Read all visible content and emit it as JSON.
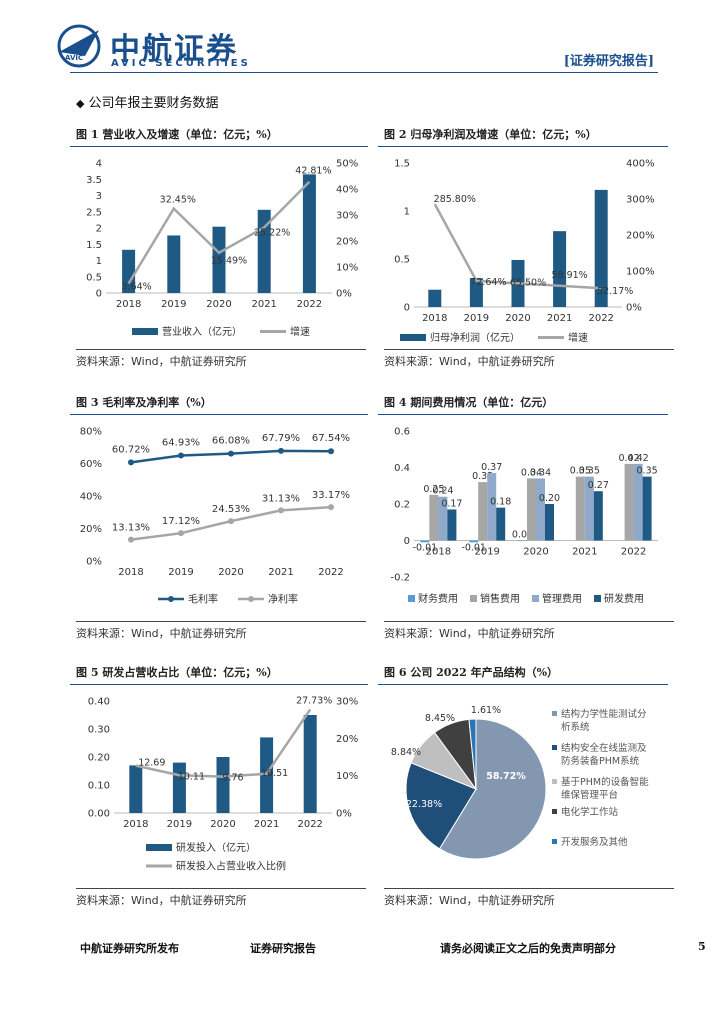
{
  "header": {
    "logo_cn": "中航证券",
    "logo_en": "AVIC SECURITIES",
    "logo_mark_text": "AVIC",
    "report_tag": "[证券研究报告]"
  },
  "section_title": "公司年报主要财务数据",
  "figures": [
    {
      "title": "图 1 营业收入及增速（单位：亿元；%）",
      "source": "资料来源：Wind，中航证券研究所"
    },
    {
      "title": "图 2 归母净利润及增速（单位：亿元；%）",
      "source": "资料来源：Wind，中航证券研究所"
    },
    {
      "title": "图 3 毛利率及净利率（%）",
      "source": "资料来源：Wind，中航证券研究所"
    },
    {
      "title": "图 4 期间费用情况（单位：亿元）",
      "source": "资料来源：Wind，中航证券研究所"
    },
    {
      "title": "图 5 研发占营收占比（单位：亿元；%）",
      "source": "资料来源：Wind，中航证券研究所"
    },
    {
      "title": "图 6 公司 2022 年产品结构（%）",
      "source": "资料来源：Wind，中航证券研究所"
    }
  ],
  "chart_data": [
    {
      "type": "bar",
      "categories": [
        "2018",
        "2019",
        "2020",
        "2021",
        "2022"
      ],
      "series": [
        {
          "name": "营业收入（亿元）",
          "values": [
            1.33,
            1.77,
            2.04,
            2.56,
            3.65
          ],
          "axis": "left",
          "color": "#1f5a85"
        },
        {
          "name": "增速",
          "type": "line",
          "values": [
            3.64,
            32.45,
            15.49,
            25.22,
            42.81
          ],
          "axis": "right",
          "color": "#a6a6a6",
          "labels": [
            "3.64%",
            "32.45%",
            "15.49%",
            "25.22%",
            "42.81%"
          ]
        }
      ],
      "ylim": [
        0,
        4
      ],
      "yticks": [
        "0",
        "0.5",
        "1",
        "1.5",
        "2",
        "2.5",
        "3",
        "3.5",
        "4"
      ],
      "y2lim": [
        0,
        50
      ],
      "y2ticks": [
        "0%",
        "10%",
        "20%",
        "30%",
        "40%",
        "50%"
      ],
      "legend": "bottom"
    },
    {
      "type": "bar",
      "categories": [
        "2018",
        "2019",
        "2020",
        "2021",
        "2022"
      ],
      "series": [
        {
          "name": "归母净利润（亿元）",
          "values": [
            0.18,
            0.3,
            0.49,
            0.79,
            1.22
          ],
          "axis": "left",
          "color": "#1f5a85"
        },
        {
          "name": "增速",
          "type": "line",
          "values": [
            285.8,
            72.64,
            65.5,
            58.91,
            52.17
          ],
          "axis": "right",
          "color": "#a6a6a6",
          "labels": [
            "285.80%",
            "72.64%",
            "65.50%",
            "58.91%",
            "52.17%"
          ]
        }
      ],
      "ylim": [
        0,
        1.5
      ],
      "yticks": [
        "0",
        "0.5",
        "1",
        "1.5"
      ],
      "y2lim": [
        0,
        400
      ],
      "y2ticks": [
        "0%",
        "100%",
        "200%",
        "300%",
        "400%"
      ],
      "legend": "bottom"
    },
    {
      "type": "line",
      "categories": [
        "2018",
        "2019",
        "2020",
        "2021",
        "2022"
      ],
      "series": [
        {
          "name": "毛利率",
          "values": [
            60.72,
            64.93,
            66.08,
            67.79,
            67.54
          ],
          "color": "#1f5a85",
          "labels": [
            "60.72%",
            "64.93%",
            "66.08%",
            "67.79%",
            "67.54%"
          ]
        },
        {
          "name": "净利率",
          "values": [
            13.13,
            17.12,
            24.53,
            31.13,
            33.17
          ],
          "color": "#a6a6a6",
          "labels": [
            "13.13%",
            "17.12%",
            "24.53%",
            "31.13%",
            "33.17%"
          ]
        }
      ],
      "ylim": [
        0,
        80
      ],
      "yticks": [
        "0%",
        "20%",
        "40%",
        "60%",
        "80%"
      ],
      "legend": "bottom"
    },
    {
      "type": "bar",
      "categories": [
        "2018",
        "2019",
        "2020",
        "2021",
        "2022"
      ],
      "series": [
        {
          "name": "财务费用",
          "values": [
            -0.01,
            -0.01,
            0.0,
            null,
            null
          ],
          "color": "#5b9bd5",
          "labels": [
            "-0.01",
            "-0.01",
            "0.00",
            "",
            ""
          ]
        },
        {
          "name": "销售费用",
          "values": [
            0.25,
            0.32,
            0.34,
            0.35,
            0.42
          ],
          "color": "#a6a6a6",
          "labels": [
            "0.25",
            "0.32",
            "0.34",
            "0.35",
            "0.42"
          ]
        },
        {
          "name": "管理费用",
          "values": [
            0.24,
            0.37,
            0.34,
            0.35,
            0.42
          ],
          "color": "#8ea9c9",
          "labels": [
            "0.24",
            "0.37",
            "0.34",
            "0.35",
            "0.42"
          ]
        },
        {
          "name": "研发费用",
          "values": [
            0.17,
            0.18,
            0.2,
            0.27,
            0.35
          ],
          "color": "#1f5a85",
          "labels": [
            "0.17",
            "0.18",
            "0.20",
            "0.27",
            "0.35"
          ]
        }
      ],
      "ylim": [
        -0.2,
        0.6
      ],
      "yticks": [
        "-0.2",
        "0",
        "0.2",
        "0.4",
        "0.6"
      ],
      "legend": "bottom"
    },
    {
      "type": "bar",
      "categories": [
        "2018",
        "2019",
        "2020",
        "2021",
        "2022"
      ],
      "series": [
        {
          "name": "研发投入（亿元）",
          "values": [
            0.17,
            0.18,
            0.2,
            0.27,
            0.35
          ],
          "axis": "left",
          "color": "#1f5a85"
        },
        {
          "name": "研发投入占营业收入比例",
          "type": "line",
          "values": [
            12.69,
            10.11,
            9.76,
            10.51,
            27.73
          ],
          "axis": "right",
          "color": "#a6a6a6",
          "labels": [
            "12.69",
            "10.11",
            "9.76",
            "10.51",
            "27.73%"
          ]
        }
      ],
      "ylim": [
        0,
        0.4
      ],
      "yticks": [
        "0.00",
        "0.10",
        "0.20",
        "0.30",
        "0.40"
      ],
      "y2lim": [
        0,
        30
      ],
      "y2ticks": [
        "0%",
        "10%",
        "20%",
        "30%"
      ],
      "legend": "bottom"
    },
    {
      "type": "pie",
      "slices": [
        {
          "label": "结构力学性能测试分析系统",
          "value": 58.72,
          "text": "58.72%",
          "color": "#8497b0"
        },
        {
          "label": "结构安全在线监测及防务装备PHM系统",
          "value": 22.38,
          "text": "22.38%",
          "color": "#1f4e79"
        },
        {
          "label": "基于PHM的设备智能维保管理平台",
          "value": 8.84,
          "text": "8.84%",
          "color": "#bfbfbf"
        },
        {
          "label": "电化学工作站",
          "value": 8.45,
          "text": "8.45%",
          "color": "#404040"
        },
        {
          "label": "开发服务及其他",
          "value": 1.61,
          "text": "1.61%",
          "color": "#2e75b6"
        }
      ],
      "legend": "right"
    }
  ],
  "footer": {
    "left": "中航证券研究所发布",
    "mid": "证券研究报告",
    "right": "请务必阅读正文之后的免责声明部分",
    "page": "5"
  }
}
